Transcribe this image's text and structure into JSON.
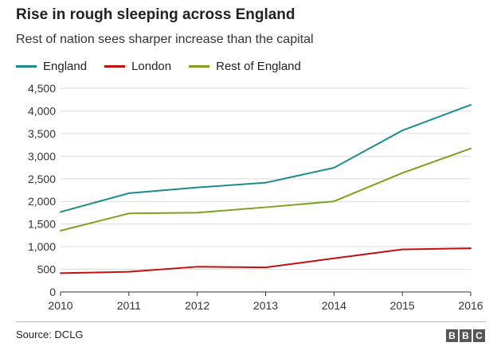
{
  "header": {
    "title": "Rise in rough sleeping across England",
    "subtitle": "Rest of nation sees sharper increase than the capital"
  },
  "chart_data": {
    "type": "line",
    "title": "Rise in rough sleeping across England",
    "subtitle": "Rest of nation sees sharper increase than the capital",
    "xlabel": "",
    "ylabel": "",
    "x": [
      2010,
      2011,
      2012,
      2013,
      2014,
      2015,
      2016
    ],
    "x_tick_labels": [
      "2010",
      "2011",
      "2012",
      "2013",
      "2014",
      "2015",
      "2016"
    ],
    "y_tick_labels": [
      "0",
      "500",
      "1,000",
      "1,500",
      "2,000",
      "2,500",
      "3,000",
      "3,500",
      "4,000",
      "4,500"
    ],
    "y_ticks": [
      0,
      500,
      1000,
      1500,
      2000,
      2500,
      3000,
      3500,
      4000,
      4500
    ],
    "ylim": [
      0,
      4500
    ],
    "grid": true,
    "legend_position": "top-left",
    "series": [
      {
        "name": "England",
        "color": "#1b8c8e",
        "values": [
          1768,
          2181,
          2309,
          2414,
          2744,
          3569,
          4134
        ]
      },
      {
        "name": "London",
        "color": "#c40f0f",
        "values": [
          415,
          446,
          557,
          543,
          742,
          940,
          964
        ]
      },
      {
        "name": "Rest of England",
        "color": "#7aa31c",
        "values": [
          1353,
          1735,
          1752,
          1871,
          2002,
          2629,
          3170
        ]
      }
    ]
  },
  "footer": {
    "source": "Source: DCLG",
    "logo_letters": [
      "B",
      "B",
      "C"
    ]
  }
}
